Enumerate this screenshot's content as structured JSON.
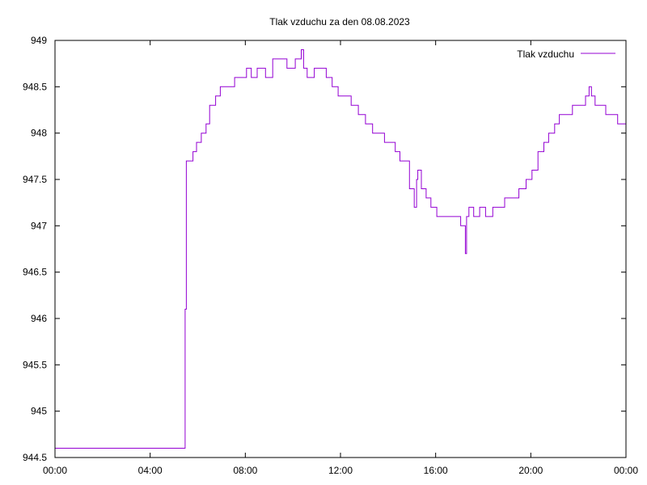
{
  "chart_data": {
    "type": "line",
    "title": "Tlak vzduchu za den 08.08.2023",
    "xlabel": "",
    "ylabel": "",
    "xlim_hours": [
      0,
      24
    ],
    "ylim": [
      944.5,
      949
    ],
    "x_ticks": [
      "00:00",
      "04:00",
      "08:00",
      "12:00",
      "16:00",
      "20:00",
      "00:00"
    ],
    "y_ticks": [
      "944.5",
      "945",
      "945.5",
      "946",
      "946.5",
      "947",
      "947.5",
      "948",
      "948.5",
      "949"
    ],
    "legend_position": "top-right",
    "grid": false,
    "line_color": "#9400d3",
    "series": [
      {
        "name": "Tlak vzduchu",
        "x_hours": [
          0,
          5.45,
          5.47,
          5.52,
          5.55,
          5.8,
          5.95,
          6.15,
          6.35,
          6.5,
          6.75,
          6.95,
          7.2,
          7.45,
          7.55,
          7.75,
          8.05,
          8.25,
          8.5,
          8.85,
          9.15,
          9.45,
          9.75,
          10.1,
          10.35,
          10.45,
          10.6,
          10.9,
          11.15,
          11.4,
          11.65,
          11.9,
          12.15,
          12.45,
          12.75,
          13.05,
          13.35,
          13.6,
          13.85,
          14.05,
          14.3,
          14.5,
          14.7,
          14.9,
          15.1,
          15.2,
          15.25,
          15.4,
          15.6,
          15.8,
          16.05,
          16.3,
          16.55,
          16.8,
          17.05,
          17.25,
          17.3,
          17.4,
          17.6,
          17.85,
          18.1,
          18.4,
          18.7,
          18.9,
          19.15,
          19.5,
          19.8,
          20.05,
          20.3,
          20.55,
          20.75,
          21.0,
          21.2,
          21.45,
          21.75,
          22.05,
          22.3,
          22.45,
          22.55,
          22.7,
          22.9,
          23.15,
          23.45,
          23.65,
          23.99
        ],
        "values": [
          944.6,
          944.6,
          946.1,
          947.7,
          947.7,
          947.8,
          947.9,
          948.0,
          948.1,
          948.3,
          948.4,
          948.5,
          948.5,
          948.5,
          948.6,
          948.6,
          948.7,
          948.6,
          948.7,
          948.6,
          948.8,
          948.8,
          948.7,
          948.8,
          948.9,
          948.7,
          948.6,
          948.7,
          948.7,
          948.6,
          948.5,
          948.4,
          948.4,
          948.3,
          948.2,
          948.1,
          948.0,
          948.0,
          947.9,
          947.9,
          947.8,
          947.7,
          947.7,
          947.4,
          947.2,
          947.5,
          947.6,
          947.4,
          947.3,
          947.2,
          947.1,
          947.1,
          947.1,
          947.1,
          947.0,
          946.7,
          947.1,
          947.2,
          947.1,
          947.2,
          947.1,
          947.2,
          947.2,
          947.3,
          947.3,
          947.4,
          947.5,
          947.6,
          947.8,
          947.9,
          948.0,
          948.1,
          948.2,
          948.2,
          948.3,
          948.3,
          948.4,
          948.5,
          948.4,
          948.3,
          948.3,
          948.2,
          948.2,
          948.1,
          948.1
        ]
      }
    ]
  }
}
